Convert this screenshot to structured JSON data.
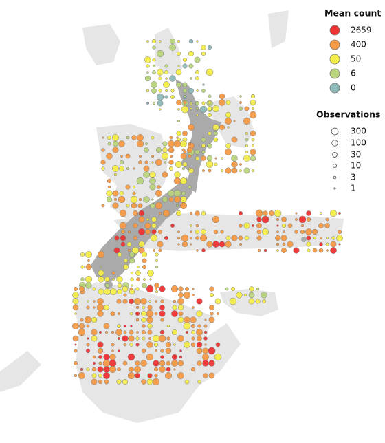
{
  "legend": {
    "mean_count": {
      "title": "Mean count",
      "items": [
        {
          "label": 2659,
          "color": "#f03232"
        },
        {
          "label": 400,
          "color": "#f59a45"
        },
        {
          "label": 50,
          "color": "#f5ee4a"
        },
        {
          "label": 6,
          "color": "#b9d47c"
        },
        {
          "label": 0,
          "color": "#8fb8b8"
        }
      ]
    },
    "observations": {
      "title": "Observations",
      "items": [
        {
          "label": 300
        },
        {
          "label": 100
        },
        {
          "label": 30
        },
        {
          "label": 10
        },
        {
          "label": 3
        },
        {
          "label": 1
        }
      ]
    }
  }
}
